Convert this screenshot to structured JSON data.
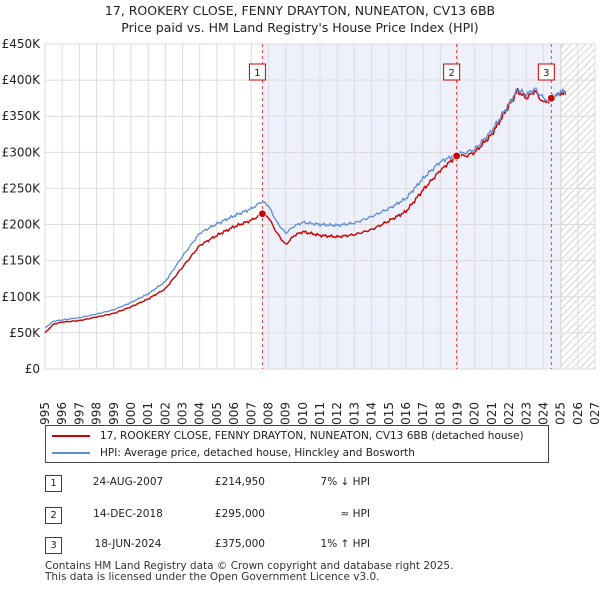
{
  "chart_data": {
    "type": "line",
    "title": "17, ROOKERY CLOSE, FENNY DRAYTON, NUNEATON, CV13 6BB",
    "subtitle": "Price paid vs. HM Land Registry's House Price Index (HPI)",
    "xlim": [
      1995,
      2027
    ],
    "ylim": [
      0,
      450000
    ],
    "x_ticks": [
      "1995",
      "1996",
      "1997",
      "1998",
      "1999",
      "2000",
      "2001",
      "2002",
      "2003",
      "2004",
      "2005",
      "2006",
      "2007",
      "2008",
      "2009",
      "2010",
      "2011",
      "2012",
      "2013",
      "2014",
      "2015",
      "2016",
      "2017",
      "2018",
      "2019",
      "2020",
      "2021",
      "2022",
      "2023",
      "2024",
      "2025",
      "2026",
      "2027"
    ],
    "y_ticks": [
      {
        "value": 0,
        "label": "£0"
      },
      {
        "value": 50000,
        "label": "£50K"
      },
      {
        "value": 100000,
        "label": "£100K"
      },
      {
        "value": 150000,
        "label": "£150K"
      },
      {
        "value": 200000,
        "label": "£200K"
      },
      {
        "value": 250000,
        "label": "£250K"
      },
      {
        "value": 300000,
        "label": "£300K"
      },
      {
        "value": 350000,
        "label": "£350K"
      },
      {
        "value": 400000,
        "label": "£400K"
      },
      {
        "value": 450000,
        "label": "£450K"
      }
    ],
    "grid": true,
    "future_hatch_from": 2025.0,
    "series": [
      {
        "name": "17, ROOKERY CLOSE, FENNY DRAYTON, NUNEATON, CV13 6BB (detached house)",
        "color": "#cc0000",
        "points": [
          [
            1995.0,
            50000
          ],
          [
            1995.5,
            62000
          ],
          [
            1996,
            65000
          ],
          [
            1997,
            67000
          ],
          [
            1998,
            72000
          ],
          [
            1999,
            77000
          ],
          [
            2000,
            86000
          ],
          [
            2001,
            97000
          ],
          [
            2002,
            111000
          ],
          [
            2003,
            141000
          ],
          [
            2004,
            171000
          ],
          [
            2005,
            185000
          ],
          [
            2006,
            197000
          ],
          [
            2007,
            206000
          ],
          [
            2007.65,
            214950
          ],
          [
            2008.0,
            210000
          ],
          [
            2008.5,
            188000
          ],
          [
            2009.0,
            172000
          ],
          [
            2009.5,
            185000
          ],
          [
            2010,
            190000
          ],
          [
            2011,
            185000
          ],
          [
            2012,
            183000
          ],
          [
            2013,
            186000
          ],
          [
            2014,
            193000
          ],
          [
            2015,
            205000
          ],
          [
            2016,
            218000
          ],
          [
            2017,
            248000
          ],
          [
            2018,
            275000
          ],
          [
            2018.95,
            295000
          ],
          [
            2019.5,
            295000
          ],
          [
            2020,
            300000
          ],
          [
            2021,
            325000
          ],
          [
            2022,
            365000
          ],
          [
            2022.5,
            385000
          ],
          [
            2023,
            375000
          ],
          [
            2023.5,
            385000
          ],
          [
            2024.0,
            368000
          ],
          [
            2024.46,
            375000
          ],
          [
            2025.0,
            382000
          ],
          [
            2025.3,
            380000
          ]
        ]
      },
      {
        "name": "HPI: Average price, detached house, Hinckley and Bosworth",
        "color": "#5b8fd6",
        "points": [
          [
            1995.0,
            57000
          ],
          [
            1995.5,
            66000
          ],
          [
            1996,
            68000
          ],
          [
            1997,
            71000
          ],
          [
            1998,
            76000
          ],
          [
            1999,
            82000
          ],
          [
            2000,
            92000
          ],
          [
            2001,
            104000
          ],
          [
            2002,
            121000
          ],
          [
            2003,
            156000
          ],
          [
            2004,
            188000
          ],
          [
            2005,
            201000
          ],
          [
            2006,
            212000
          ],
          [
            2007,
            222000
          ],
          [
            2007.65,
            232000
          ],
          [
            2008.0,
            226000
          ],
          [
            2008.5,
            203000
          ],
          [
            2009.0,
            188000
          ],
          [
            2009.5,
            198000
          ],
          [
            2010,
            203000
          ],
          [
            2011,
            200000
          ],
          [
            2012,
            199000
          ],
          [
            2013,
            202000
          ],
          [
            2014,
            211000
          ],
          [
            2015,
            222000
          ],
          [
            2016,
            236000
          ],
          [
            2017,
            264000
          ],
          [
            2018,
            287000
          ],
          [
            2018.95,
            297000
          ],
          [
            2019.5,
            300000
          ],
          [
            2020,
            304000
          ],
          [
            2021,
            330000
          ],
          [
            2022,
            367000
          ],
          [
            2022.5,
            387000
          ],
          [
            2023,
            380000
          ],
          [
            2023.5,
            388000
          ],
          [
            2024.0,
            375000
          ],
          [
            2024.46,
            372000
          ],
          [
            2025.0,
            384000
          ],
          [
            2025.3,
            382000
          ]
        ]
      }
    ],
    "sales": [
      {
        "num": "1",
        "x": 2007.65,
        "price": 214950,
        "date": "24-AUG-2007",
        "price_label": "£214,950",
        "hpi": "7% ↓ HPI"
      },
      {
        "num": "2",
        "x": 2018.95,
        "price": 295000,
        "date": "14-DEC-2018",
        "price_label": "£295,000",
        "hpi": "≈ HPI"
      },
      {
        "num": "3",
        "x": 2024.46,
        "price": 375000,
        "date": "18-JUN-2024",
        "price_label": "£375,000",
        "hpi": "1% ↑ HPI"
      }
    ]
  },
  "legend": {
    "property_label": "17, ROOKERY CLOSE, FENNY DRAYTON, NUNEATON, CV13 6BB (detached house)",
    "hpi_label": "HPI: Average price, detached house, Hinckley and Bosworth"
  },
  "footer": {
    "line1": "Contains HM Land Registry data © Crown copyright and database right 2025.",
    "line2": "This data is licensed under the Open Government Licence v3.0."
  }
}
